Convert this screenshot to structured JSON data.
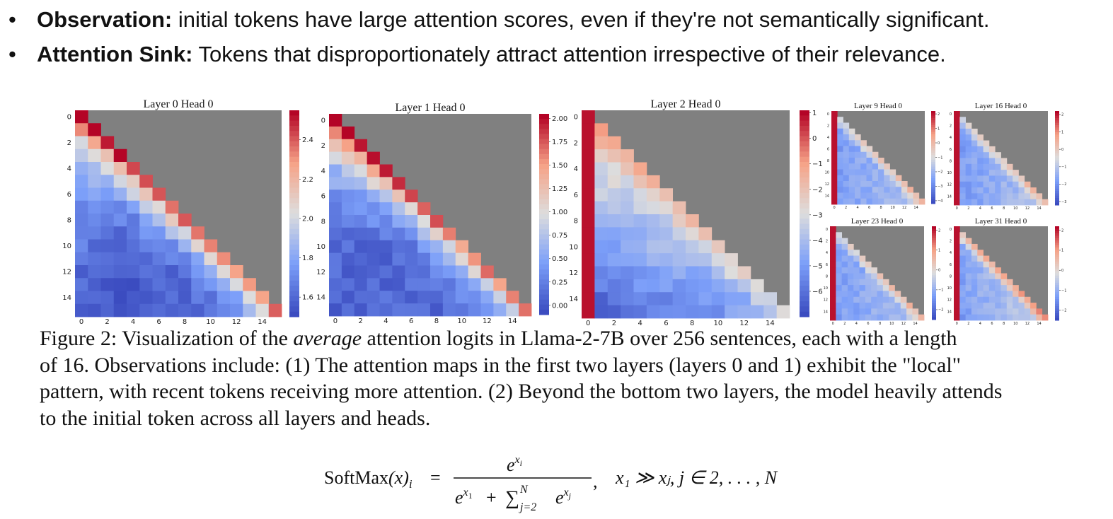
{
  "bullets": [
    {
      "term": "Observation:",
      "text": " initial tokens have large attention scores, even if they're not semantically significant."
    },
    {
      "term": "Attention Sink:",
      "text": " Tokens that disproportionately attract attention irrespective of their relevance."
    }
  ],
  "caption": {
    "lines": [
      [
        "Figure 2: Visualization of the ",
        "average",
        " attention logits in Llama-2-7B over 256 sentences, each with a length"
      ],
      [
        "of 16. Observations include: (1) The attention maps in the first two layers (layers 0 and 1) exhibit the \"local\""
      ],
      [
        "pattern, with recent tokens receiving more attention. (2) Beyond the bottom two layers, the model heavily attends"
      ],
      [
        "to the initial token across all layers and heads."
      ]
    ]
  },
  "formula": {
    "lhs": "SoftMax",
    "arg": "(x)",
    "sub": "i",
    "eq": "=",
    "num_base": "e",
    "num_exp": "x",
    "num_exp_sub": "i",
    "den_a_base": "e",
    "den_a_exp": "x",
    "den_a_exp_sub": "1",
    "den_plus": "+",
    "den_sum": "∑",
    "den_sum_sub": "j=2",
    "den_sum_sup": "N",
    "den_b_base": "e",
    "den_b_exp": "x",
    "den_b_exp_sub": "j",
    "comma": ",",
    "cond": "x₁ ≫ xⱼ, j ∈ 2, . . . , N"
  },
  "chart_data": [
    {
      "type": "heatmap",
      "title": "Layer 0 Head 0",
      "pattern": "local",
      "grid_size": 16,
      "mask": "upper-triangle-masked",
      "xticks": [
        "0",
        "2",
        "4",
        "6",
        "8",
        "10",
        "12",
        "14"
      ],
      "yticks": [
        "0",
        "2",
        "4",
        "6",
        "8",
        "10",
        "12",
        "14"
      ],
      "colorbar_ticks": [
        "2.4",
        "2.2",
        "2.0",
        "1.8",
        "1.6"
      ],
      "colorbar_range": [
        1.5,
        2.55
      ],
      "colormap": "coolwarm"
    },
    {
      "type": "heatmap",
      "title": "Layer 1 Head 0",
      "pattern": "local",
      "grid_size": 16,
      "mask": "upper-triangle-masked",
      "xticks": [
        "0",
        "2",
        "4",
        "6",
        "8",
        "10",
        "12",
        "14"
      ],
      "yticks": [
        "0",
        "2",
        "4",
        "6",
        "8",
        "10",
        "12",
        "14"
      ],
      "colorbar_ticks": [
        "2.00",
        "1.75",
        "1.50",
        "1.25",
        "1.00",
        "0.75",
        "0.50",
        "0.25",
        "0.00"
      ],
      "colorbar_range": [
        -0.1,
        2.05
      ],
      "colormap": "coolwarm"
    },
    {
      "type": "heatmap",
      "title": "Layer 2 Head 0",
      "pattern": "sink",
      "grid_size": 16,
      "mask": "upper-triangle-masked",
      "xticks": [
        "0",
        "2",
        "4",
        "6",
        "8",
        "10",
        "12",
        "14"
      ],
      "yticks": [
        "0",
        "2",
        "4",
        "6",
        "8",
        "10",
        "12",
        "14"
      ],
      "colorbar_ticks": [
        "1",
        "0",
        "−1",
        "−2",
        "−3",
        "−4",
        "−5",
        "−6"
      ],
      "colorbar_range": [
        -7,
        1.1
      ],
      "colormap": "coolwarm"
    },
    {
      "type": "heatmap",
      "title": "Layer 9 Head 0",
      "pattern": "sink",
      "grid_size": 16,
      "mask": "upper-triangle-masked",
      "xticks": [
        "0",
        "2",
        "4",
        "6",
        "8",
        "10",
        "12",
        "14"
      ],
      "yticks": [
        "0",
        "2",
        "4",
        "6",
        "8",
        "10",
        "12",
        "14"
      ],
      "colorbar_ticks": [
        "2",
        "1",
        "0",
        "−1",
        "−2",
        "−3",
        "−4"
      ],
      "colorbar_range": [
        -4.2,
        2.2
      ],
      "colormap": "coolwarm"
    },
    {
      "type": "heatmap",
      "title": "Layer 16 Head 0",
      "pattern": "sink",
      "grid_size": 16,
      "mask": "upper-triangle-masked",
      "xticks": [
        "0",
        "2",
        "4",
        "6",
        "8",
        "10",
        "12",
        "14"
      ],
      "yticks": [
        "0",
        "2",
        "4",
        "6",
        "8",
        "10",
        "12",
        "14"
      ],
      "colorbar_ticks": [
        "2",
        "1",
        "0",
        "−1",
        "−2",
        "−3"
      ],
      "colorbar_range": [
        -3.2,
        2.2
      ],
      "colormap": "coolwarm"
    },
    {
      "type": "heatmap",
      "title": "Layer 23 Head 0",
      "pattern": "sink",
      "grid_size": 16,
      "mask": "upper-triangle-masked",
      "xticks": [
        "0",
        "2",
        "4",
        "6",
        "8",
        "10",
        "12",
        "14"
      ],
      "yticks": [
        "0",
        "2",
        "4",
        "6",
        "8",
        "10",
        "12",
        "14"
      ],
      "colorbar_ticks": [
        "2",
        "1",
        "0",
        "−1",
        "−2"
      ],
      "colorbar_range": [
        -2.5,
        2.2
      ],
      "colormap": "coolwarm"
    },
    {
      "type": "heatmap",
      "title": "Layer 31 Head 0",
      "pattern": "sink",
      "grid_size": 16,
      "mask": "upper-triangle-masked",
      "xticks": [
        "0",
        "2",
        "4",
        "6",
        "8",
        "10",
        "12",
        "14"
      ],
      "yticks": [
        "0",
        "2",
        "4",
        "6",
        "8",
        "10",
        "12",
        "14"
      ],
      "colorbar_ticks": [
        "2",
        "1",
        "0",
        "−1",
        "−2"
      ],
      "colorbar_range": [
        -2.5,
        2.2
      ],
      "colormap": "coolwarm"
    }
  ]
}
